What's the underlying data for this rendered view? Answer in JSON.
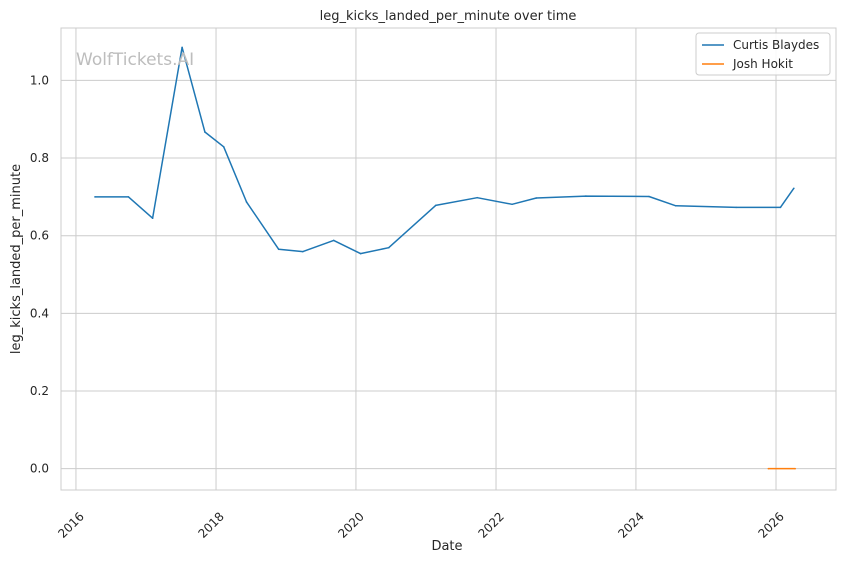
{
  "watermark": "WolfTickets.AI",
  "chart_data": {
    "type": "line",
    "title": "leg_kicks_landed_per_minute over time",
    "xlabel": "Date",
    "ylabel": "leg_kicks_landed_per_minute",
    "xlim": [
      "2015-10-15",
      "2026-11-10"
    ],
    "ylim": [
      -0.055,
      1.135
    ],
    "x_ticks": [
      "2016",
      "2018",
      "2020",
      "2022",
      "2024",
      "2026"
    ],
    "y_ticks": [
      "0.0",
      "0.2",
      "0.4",
      "0.6",
      "0.8",
      "1.0"
    ],
    "grid": true,
    "legend_position": "top-right",
    "series": [
      {
        "name": "Curtis Blaydes",
        "color": "#1f77b4",
        "points": [
          {
            "x": "2016-04-09",
            "y": 0.7
          },
          {
            "x": "2016-10-01",
            "y": 0.7
          },
          {
            "x": "2017-02-04",
            "y": 0.645
          },
          {
            "x": "2017-07-08",
            "y": 1.085
          },
          {
            "x": "2017-11-04",
            "y": 0.867
          },
          {
            "x": "2018-02-10",
            "y": 0.829
          },
          {
            "x": "2018-06-09",
            "y": 0.687
          },
          {
            "x": "2018-11-24",
            "y": 0.565
          },
          {
            "x": "2019-03-30",
            "y": 0.559
          },
          {
            "x": "2019-09-07",
            "y": 0.588
          },
          {
            "x": "2020-01-25",
            "y": 0.554
          },
          {
            "x": "2020-06-20",
            "y": 0.569
          },
          {
            "x": "2021-02-20",
            "y": 0.678
          },
          {
            "x": "2021-09-25",
            "y": 0.698
          },
          {
            "x": "2022-03-26",
            "y": 0.681
          },
          {
            "x": "2022-07-30",
            "y": 0.697
          },
          {
            "x": "2023-04-15",
            "y": 0.702
          },
          {
            "x": "2024-03-09",
            "y": 0.701
          },
          {
            "x": "2024-07-27",
            "y": 0.677
          },
          {
            "x": "2025-06-07",
            "y": 0.673
          },
          {
            "x": "2026-01-24",
            "y": 0.673
          },
          {
            "x": "2026-04-04",
            "y": 0.722
          }
        ]
      },
      {
        "name": "Josh Hokit",
        "color": "#ff7f0e",
        "points": [
          {
            "x": "2025-11-22",
            "y": 0.0
          },
          {
            "x": "2026-04-11",
            "y": 0.0
          }
        ]
      }
    ]
  }
}
